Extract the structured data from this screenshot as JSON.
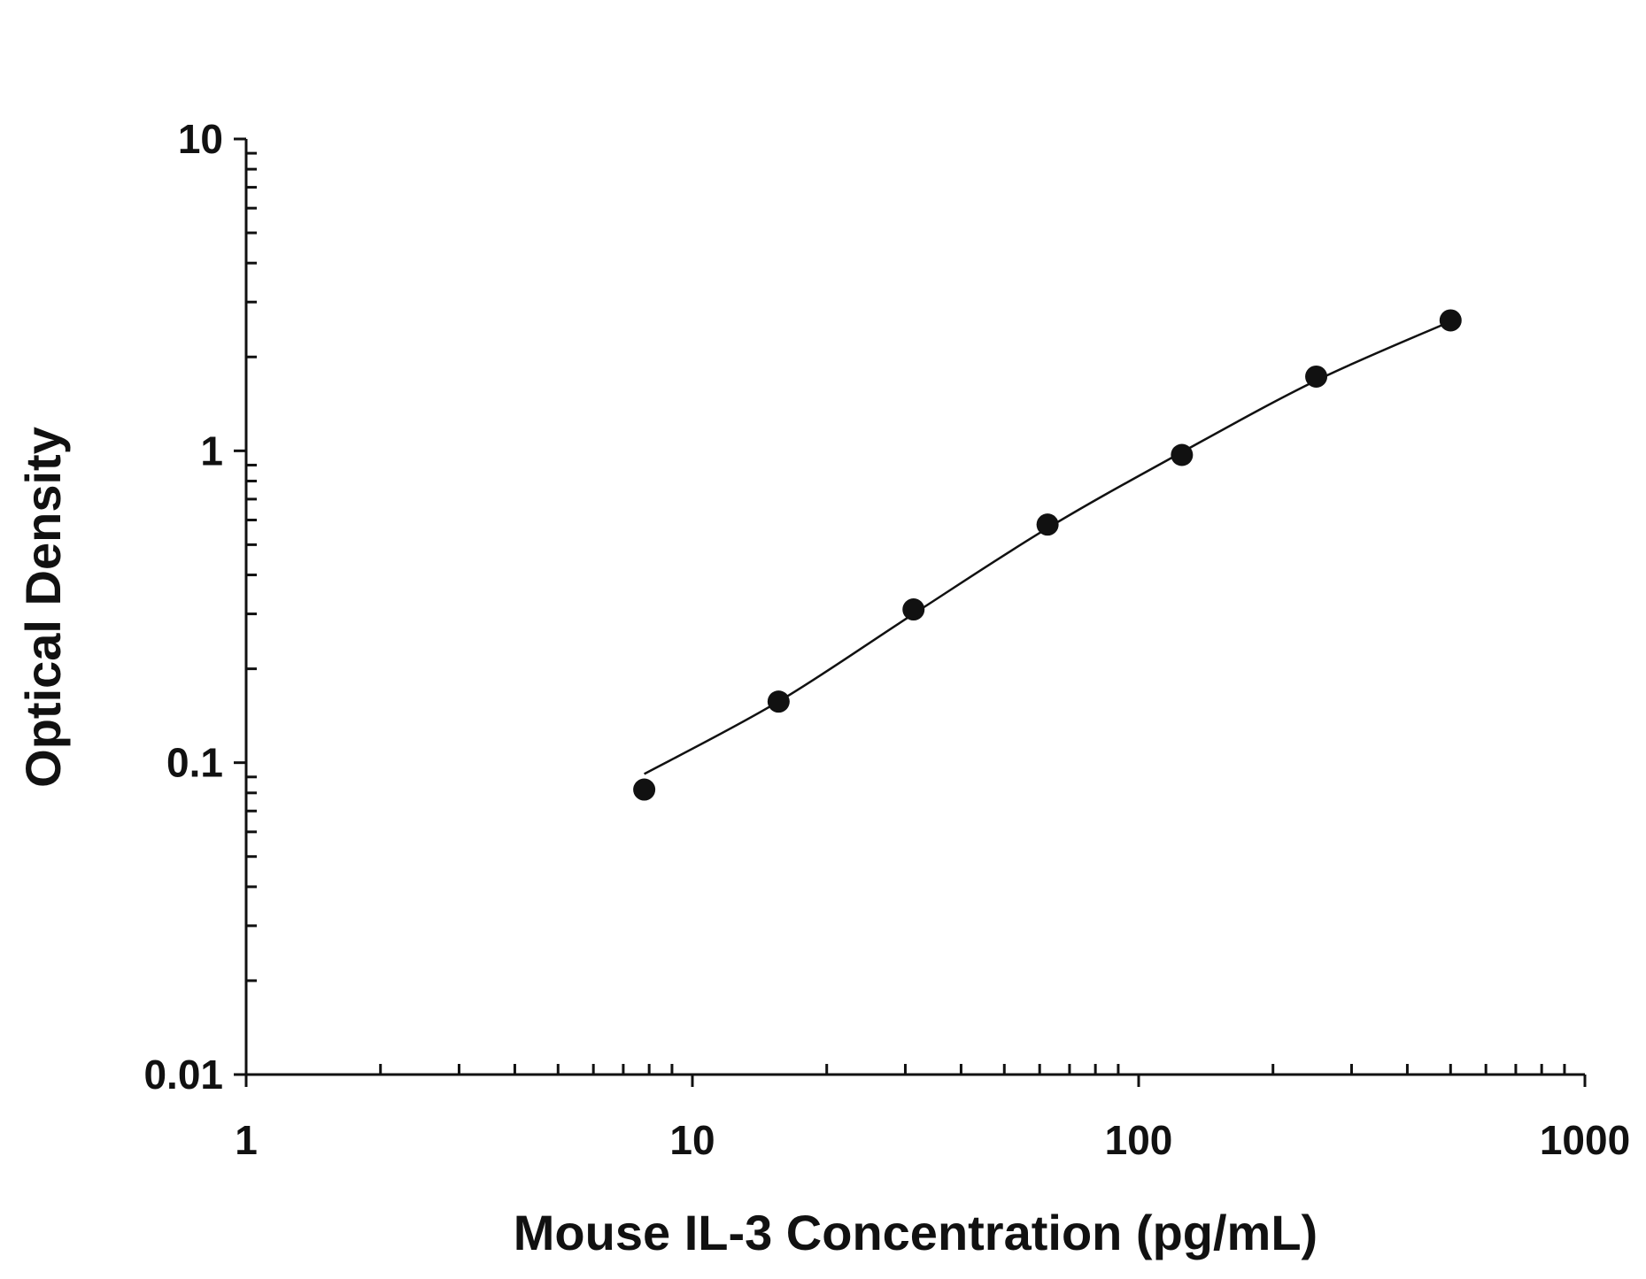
{
  "chart_data": {
    "type": "scatter",
    "title": "",
    "xlabel": "Mouse IL-3 Concentration (pg/mL)",
    "ylabel": "Optical Density",
    "xscale": "log",
    "yscale": "log",
    "xlim": [
      1,
      1000
    ],
    "ylim": [
      0.01,
      10
    ],
    "x_ticks": [
      "1",
      "10",
      "100",
      "1000"
    ],
    "y_ticks": [
      "0.01",
      "0.1",
      "1",
      "10"
    ],
    "grid": false,
    "legend": "none",
    "series": [
      {
        "points": [
          {
            "x": 7.8,
            "y": 0.082
          },
          {
            "x": 15.6,
            "y": 0.157
          },
          {
            "x": 31.3,
            "y": 0.31
          },
          {
            "x": 62.5,
            "y": 0.58
          },
          {
            "x": 125,
            "y": 0.97
          },
          {
            "x": 250,
            "y": 1.73
          },
          {
            "x": 500,
            "y": 2.62
          }
        ]
      }
    ],
    "fit_curve": {
      "x": [
        7.8,
        15.6,
        31.3,
        62.5,
        125,
        250,
        500
      ],
      "y": [
        0.092,
        0.157,
        0.3,
        0.565,
        0.99,
        1.68,
        2.6
      ]
    }
  }
}
